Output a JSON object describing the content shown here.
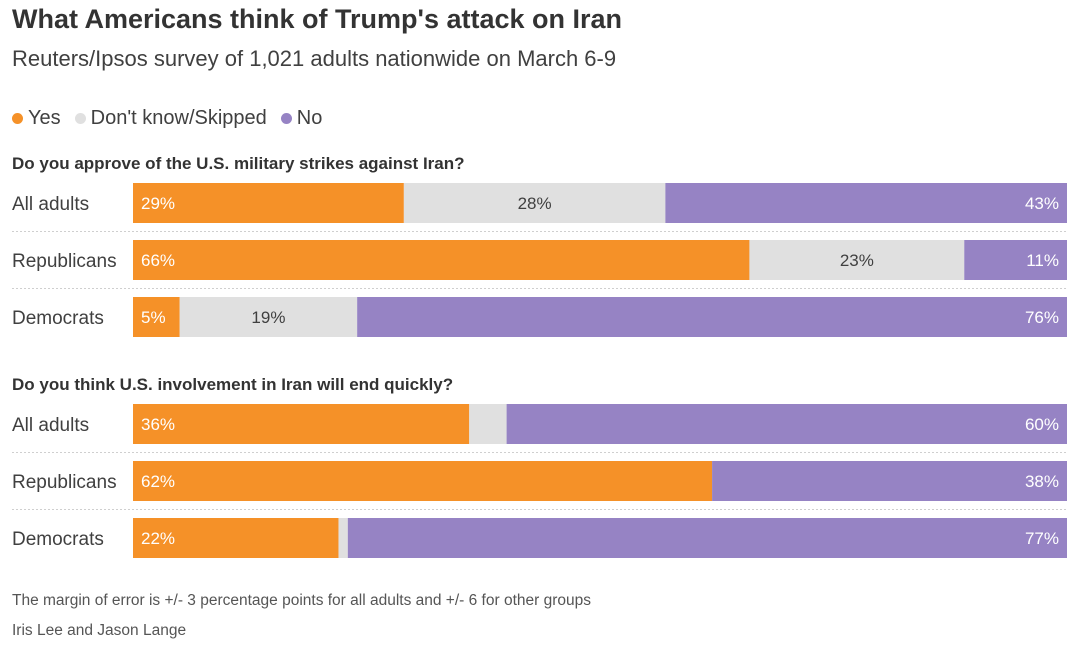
{
  "title": "What Americans think of Trump's attack on Iran",
  "subtitle": "Reuters/Ipsos survey of 1,021 adults nationwide on March 6-9",
  "legend": [
    {
      "label": "Yes",
      "color": "#f59128"
    },
    {
      "label": "Don't know/Skipped",
      "color": "#e0e0e0"
    },
    {
      "label": "No",
      "color": "#9683c4"
    }
  ],
  "chart_data": {
    "type": "bar",
    "orientation": "horizontal",
    "stacked": true,
    "xlim": [
      0,
      100
    ],
    "series": [
      {
        "name": "Yes",
        "color": "#f59128"
      },
      {
        "name": "Don't know/Skipped",
        "color": "#e0e0e0"
      },
      {
        "name": "No",
        "color": "#9683c4"
      }
    ],
    "panels": [
      {
        "question": "Do you approve of the U.S. military strikes against Iran?",
        "rows": [
          {
            "group": "All adults",
            "values": [
              29,
              28,
              43
            ],
            "labels": [
              "29%",
              "28%",
              "43%"
            ]
          },
          {
            "group": "Republicans",
            "values": [
              66,
              23,
              11
            ],
            "labels": [
              "66%",
              "23%",
              "11%"
            ]
          },
          {
            "group": "Democrats",
            "values": [
              5,
              19,
              76
            ],
            "labels": [
              "5%",
              "19%",
              "76%"
            ]
          }
        ]
      },
      {
        "question": "Do you think U.S. involvement in Iran will end quickly?",
        "rows": [
          {
            "group": "All adults",
            "values": [
              36,
              4,
              60
            ],
            "labels": [
              "36%",
              "",
              "60%"
            ]
          },
          {
            "group": "Republicans",
            "values": [
              62,
              0,
              38
            ],
            "labels": [
              "62%",
              "",
              "38%"
            ]
          },
          {
            "group": "Democrats",
            "values": [
              22,
              1,
              77
            ],
            "labels": [
              "22%",
              "",
              "77%"
            ]
          }
        ]
      }
    ]
  },
  "footnote": "The margin of error is +/- 3 percentage points for all adults and +/- 6 for other groups",
  "credit": "Iris Lee and Jason Lange"
}
